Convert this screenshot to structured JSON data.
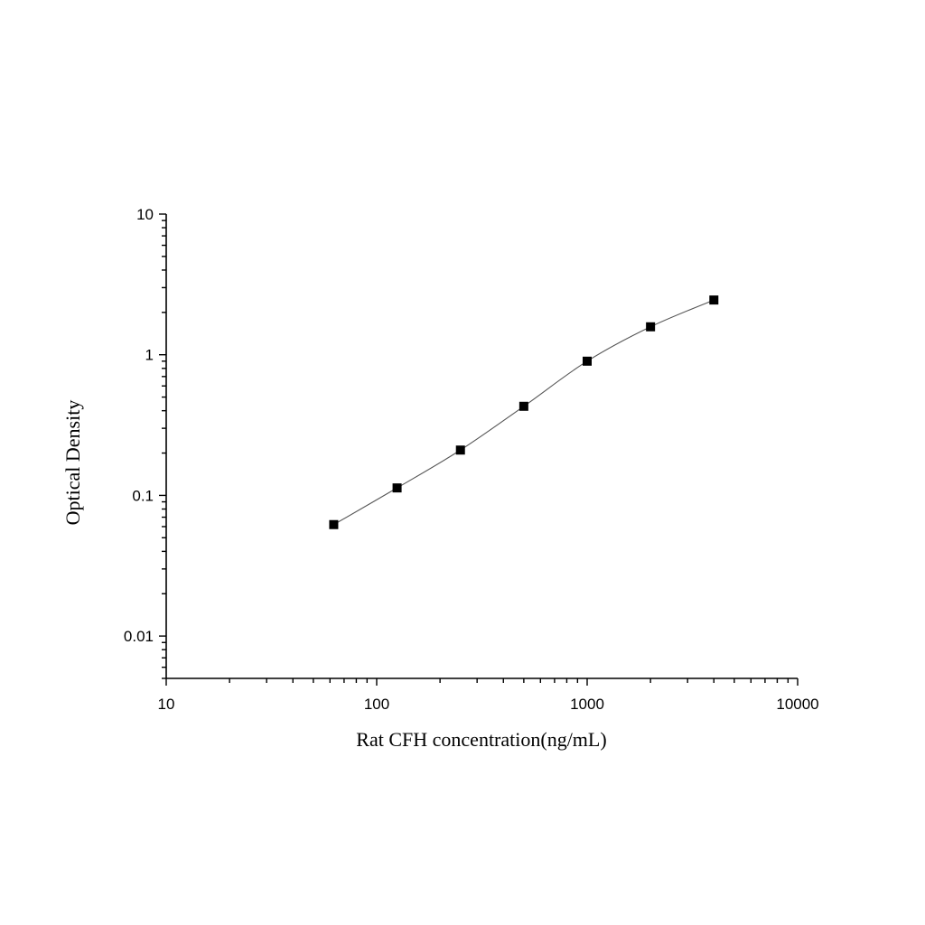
{
  "chart_data": {
    "type": "scatter",
    "xlabel": "Rat CFH concentration(ng/mL)",
    "ylabel": "Optical Density",
    "x_scale": "log",
    "y_scale": "log",
    "xlim": [
      10,
      10000
    ],
    "ylim": [
      0.005,
      10
    ],
    "x_ticks": [
      "10",
      "100",
      "1000",
      "10000"
    ],
    "y_ticks": [
      "0.01",
      "0.1",
      "1",
      "10"
    ],
    "grid": false,
    "legend": "none",
    "series": [
      {
        "marker": "square",
        "color": "#000000",
        "x": [
          62.5,
          125,
          250,
          500,
          1000,
          2000,
          4000
        ],
        "y": [
          0.062,
          0.113,
          0.21,
          0.43,
          0.9,
          1.58,
          2.45
        ]
      }
    ],
    "fit_curve": {
      "color": "#555555"
    }
  }
}
